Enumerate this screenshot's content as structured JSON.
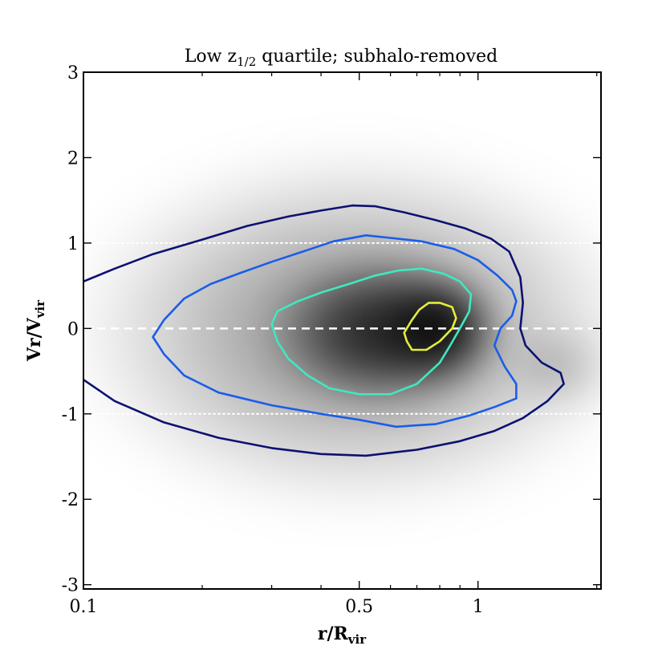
{
  "chart_data": {
    "type": "contour",
    "title_prefix": "Low z",
    "title_subscript": "1/2",
    "title_suffix": " quartile; subhalo-removed",
    "xlabel_main": "r/R",
    "xlabel_sub": "vir",
    "ylabel_main": "Vr/V",
    "ylabel_sub": "vir",
    "xscale": "log",
    "xlim": [
      0.1,
      2.05
    ],
    "ylim": [
      -3.05,
      3.0
    ],
    "xticks": [
      {
        "value": 0.1,
        "label": "0.1"
      },
      {
        "value": 0.5,
        "label": "0.5"
      },
      {
        "value": 1.0,
        "label": "1"
      }
    ],
    "yticks": [
      {
        "value": 3,
        "label": "3"
      },
      {
        "value": 2,
        "label": "2"
      },
      {
        "value": 1,
        "label": "1"
      },
      {
        "value": 0,
        "label": "0"
      },
      {
        "value": -1,
        "label": "-1"
      },
      {
        "value": -2,
        "label": "-2"
      },
      {
        "value": -3,
        "label": "-3"
      }
    ],
    "reference_lines": [
      {
        "y": 0,
        "style": "dashed",
        "color": "#ffffff"
      },
      {
        "y": 1,
        "style": "dotted",
        "color": "#ffffff"
      },
      {
        "y": -1,
        "style": "dotted",
        "color": "#ffffff"
      }
    ],
    "density_peak": {
      "x": 0.78,
      "y": 0.0
    },
    "contours": [
      {
        "name": "outer",
        "color": "#0c1270",
        "closed": false,
        "points": [
          [
            0.1,
            0.55
          ],
          [
            0.12,
            0.7
          ],
          [
            0.15,
            0.87
          ],
          [
            0.2,
            1.04
          ],
          [
            0.26,
            1.2
          ],
          [
            0.33,
            1.31
          ],
          [
            0.4,
            1.38
          ],
          [
            0.48,
            1.44
          ],
          [
            0.55,
            1.43
          ],
          [
            0.65,
            1.36
          ],
          [
            0.78,
            1.27
          ],
          [
            0.93,
            1.17
          ],
          [
            1.08,
            1.05
          ],
          [
            1.2,
            0.9
          ],
          [
            1.28,
            0.6
          ],
          [
            1.3,
            0.3
          ],
          [
            1.28,
            0.0
          ],
          [
            1.32,
            -0.2
          ],
          [
            1.45,
            -0.4
          ],
          [
            1.62,
            -0.52
          ],
          [
            1.65,
            -0.65
          ],
          [
            1.5,
            -0.85
          ],
          [
            1.3,
            -1.05
          ],
          [
            1.1,
            -1.2
          ],
          [
            0.9,
            -1.32
          ],
          [
            0.7,
            -1.42
          ],
          [
            0.52,
            -1.49
          ],
          [
            0.4,
            -1.47
          ],
          [
            0.3,
            -1.4
          ],
          [
            0.22,
            -1.28
          ],
          [
            0.16,
            -1.1
          ],
          [
            0.12,
            -0.85
          ],
          [
            0.1,
            -0.6
          ]
        ]
      },
      {
        "name": "middle",
        "color": "#1b5de8",
        "closed": true,
        "points": [
          [
            0.15,
            -0.1
          ],
          [
            0.16,
            0.1
          ],
          [
            0.18,
            0.35
          ],
          [
            0.21,
            0.52
          ],
          [
            0.25,
            0.65
          ],
          [
            0.3,
            0.78
          ],
          [
            0.36,
            0.9
          ],
          [
            0.43,
            1.02
          ],
          [
            0.52,
            1.09
          ],
          [
            0.6,
            1.06
          ],
          [
            0.72,
            1.02
          ],
          [
            0.87,
            0.93
          ],
          [
            1.0,
            0.8
          ],
          [
            1.12,
            0.62
          ],
          [
            1.22,
            0.45
          ],
          [
            1.25,
            0.32
          ],
          [
            1.22,
            0.15
          ],
          [
            1.14,
            0.0
          ],
          [
            1.1,
            -0.2
          ],
          [
            1.17,
            -0.45
          ],
          [
            1.25,
            -0.65
          ],
          [
            1.25,
            -0.82
          ],
          [
            1.1,
            -0.92
          ],
          [
            0.95,
            -1.02
          ],
          [
            0.78,
            -1.12
          ],
          [
            0.62,
            -1.15
          ],
          [
            0.5,
            -1.07
          ],
          [
            0.4,
            -1.0
          ],
          [
            0.3,
            -0.9
          ],
          [
            0.22,
            -0.75
          ],
          [
            0.18,
            -0.55
          ],
          [
            0.16,
            -0.3
          ]
        ]
      },
      {
        "name": "inner",
        "color": "#3fe8c0",
        "closed": true,
        "points": [
          [
            0.3,
            0.05
          ],
          [
            0.31,
            0.2
          ],
          [
            0.35,
            0.32
          ],
          [
            0.4,
            0.42
          ],
          [
            0.47,
            0.52
          ],
          [
            0.55,
            0.62
          ],
          [
            0.63,
            0.68
          ],
          [
            0.72,
            0.7
          ],
          [
            0.82,
            0.64
          ],
          [
            0.9,
            0.55
          ],
          [
            0.96,
            0.4
          ],
          [
            0.95,
            0.2
          ],
          [
            0.9,
            0.0
          ],
          [
            0.85,
            -0.2
          ],
          [
            0.8,
            -0.4
          ],
          [
            0.7,
            -0.65
          ],
          [
            0.6,
            -0.77
          ],
          [
            0.5,
            -0.77
          ],
          [
            0.42,
            -0.7
          ],
          [
            0.37,
            -0.55
          ],
          [
            0.33,
            -0.35
          ],
          [
            0.31,
            -0.15
          ]
        ]
      },
      {
        "name": "core",
        "color": "#e4ee3a",
        "closed": true,
        "points": [
          [
            0.65,
            -0.05
          ],
          [
            0.68,
            0.1
          ],
          [
            0.71,
            0.22
          ],
          [
            0.75,
            0.3
          ],
          [
            0.8,
            0.3
          ],
          [
            0.86,
            0.25
          ],
          [
            0.88,
            0.12
          ],
          [
            0.86,
            0.0
          ],
          [
            0.8,
            -0.15
          ],
          [
            0.74,
            -0.25
          ],
          [
            0.68,
            -0.25
          ],
          [
            0.66,
            -0.15
          ]
        ]
      }
    ]
  }
}
